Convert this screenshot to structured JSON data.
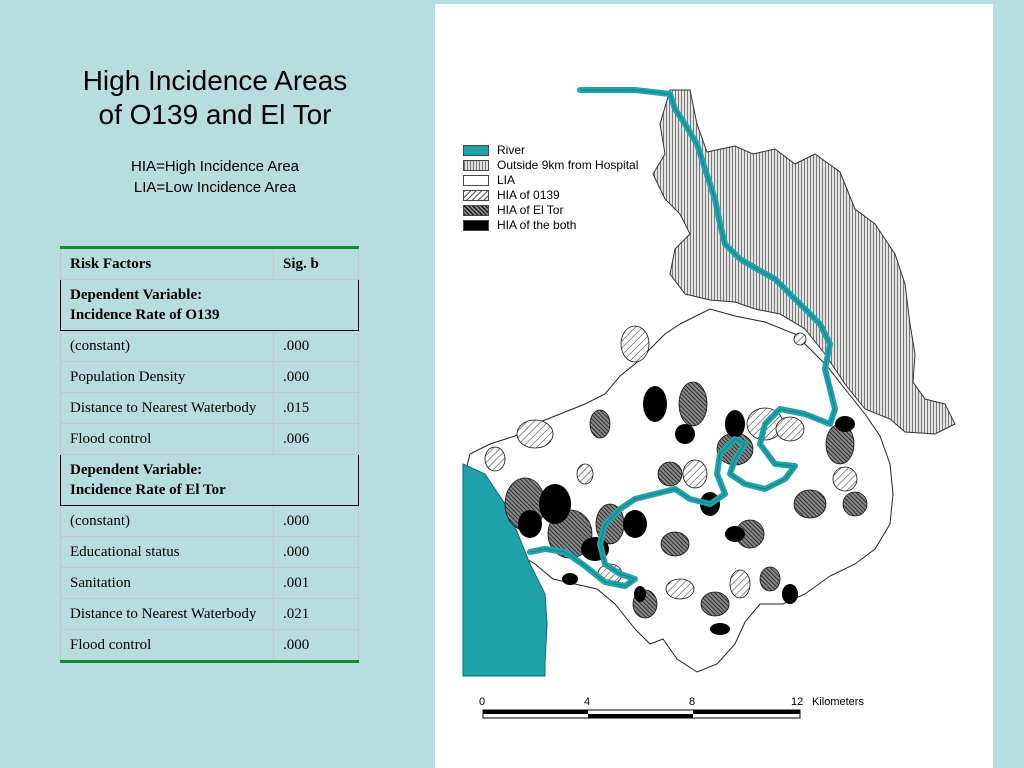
{
  "title_line1": "High Incidence Areas",
  "title_line2": "of O139 and El Tor",
  "subtitle_line1": "HIA=High Incidence Area",
  "subtitle_line2": "LIA=Low Incidence Area",
  "table": {
    "headers": [
      "Risk Factors",
      "Sig. b"
    ],
    "section1": {
      "label_line1": "Dependent Variable:",
      "label_line2": "Incidence Rate of O139",
      "rows": [
        {
          "factor": "(constant)",
          "sig": ".000"
        },
        {
          "factor": "Population Density",
          "sig": ".000"
        },
        {
          "factor": "Distance to Nearest Waterbody",
          "sig": ".015"
        },
        {
          "factor": "Flood control",
          "sig": ".006"
        }
      ]
    },
    "section2": {
      "label_line1": "Dependent Variable:",
      "label_line2": "Incidence Rate of El Tor",
      "rows": [
        {
          "factor": "(constant)",
          "sig": ".000"
        },
        {
          "factor": "Educational status",
          "sig": ".000"
        },
        {
          "factor": "Sanitation",
          "sig": ".001"
        },
        {
          "factor": "Distance to Nearest Waterbody",
          "sig": ".021"
        },
        {
          "factor": "Flood control",
          "sig": ".000"
        }
      ]
    }
  },
  "legend": [
    {
      "label": "River",
      "swatch": "river"
    },
    {
      "label": "Outside 9km from Hospital",
      "swatch": "outside"
    },
    {
      "label": "LIA",
      "swatch": "lia"
    },
    {
      "label": "HIA of 0139",
      "swatch": "hia0139"
    },
    {
      "label": "HIA of El Tor",
      "swatch": "hiaeltor"
    },
    {
      "label": "HIA of the both",
      "swatch": "both"
    }
  ],
  "scale": {
    "ticks": [
      "0",
      "4",
      "8",
      "12"
    ],
    "unit": "Kilometers"
  },
  "colors": {
    "background": "#b8dde1",
    "river": "#1fa3ab",
    "table_rule": "#138a2e"
  }
}
